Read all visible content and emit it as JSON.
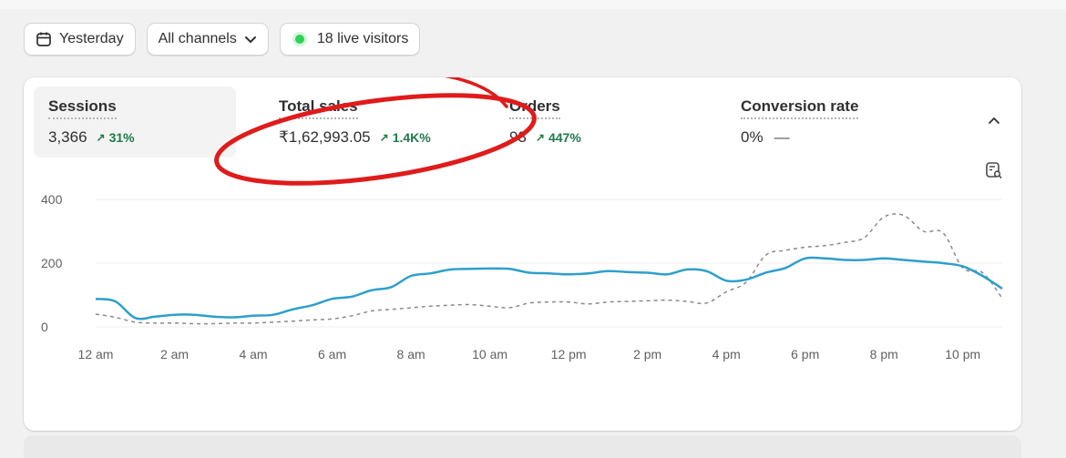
{
  "toolbar": {
    "date_label": "Yesterday",
    "channels_label": "All channels",
    "live_label": "18 live visitors"
  },
  "metrics": [
    {
      "label": "Sessions",
      "value": "3,366",
      "change": "31%"
    },
    {
      "label": "Total sales",
      "value": "₹1,62,993.05",
      "change": "1.4K%"
    },
    {
      "label": "Orders",
      "value": "93",
      "change": "447%"
    },
    {
      "label": "Conversion rate",
      "value": "0%",
      "change": "—"
    }
  ],
  "colors": {
    "primary_series": "#2e9fcb",
    "comparison_series": "#8a8a8a",
    "positive_change": "#1f7a4a",
    "annotation": "#e01b1b",
    "live_dot": "#2ed15a"
  },
  "icons": [
    "calendar-icon",
    "chevron-down-icon",
    "live-dot-icon",
    "chevron-up-icon",
    "chart-search-icon"
  ],
  "chart_data": {
    "type": "line",
    "y_ticks": [
      "0",
      "200",
      "400"
    ],
    "x_ticks": [
      "12 am",
      "2 am",
      "4 am",
      "6 am",
      "8 am",
      "10 am",
      "12 pm",
      "2 pm",
      "4 pm",
      "6 pm",
      "8 pm",
      "10 pm"
    ],
    "ylim": [
      0,
      400
    ],
    "grid": true,
    "series": [
      {
        "style": "solid",
        "x": [
          0,
          0.5,
          1,
          1.5,
          2,
          2.5,
          3,
          3.5,
          4,
          4.5,
          5,
          5.5,
          6,
          6.5,
          7,
          7.5,
          8,
          8.5,
          9,
          9.5,
          10,
          10.5,
          11,
          11.5,
          12,
          12.5,
          13,
          13.5,
          14,
          14.5,
          15,
          15.5,
          16,
          16.5,
          17,
          17.5,
          18,
          18.5,
          19,
          19.5,
          20,
          20.5,
          21,
          21.5,
          22,
          22.5,
          23
        ],
        "values": [
          88,
          80,
          28,
          32,
          38,
          38,
          32,
          30,
          35,
          38,
          55,
          68,
          88,
          95,
          115,
          125,
          160,
          168,
          180,
          182,
          183,
          182,
          170,
          168,
          165,
          168,
          175,
          172,
          170,
          165,
          180,
          175,
          145,
          148,
          170,
          185,
          215,
          215,
          210,
          210,
          215,
          210,
          205,
          200,
          190,
          160,
          120
        ]
      },
      {
        "style": "dashed",
        "x": [
          0,
          0.5,
          1,
          1.5,
          2,
          2.5,
          3,
          3.5,
          4,
          4.5,
          5,
          5.5,
          6,
          6.5,
          7,
          7.5,
          8,
          8.5,
          9,
          9.5,
          10,
          10.5,
          11,
          11.5,
          12,
          12.5,
          13,
          13.5,
          14,
          14.5,
          15,
          15.5,
          16,
          16.5,
          17,
          17.5,
          18,
          18.5,
          19,
          19.5,
          20,
          20.5,
          21,
          21.5,
          22,
          22.5,
          23
        ],
        "values": [
          40,
          30,
          15,
          12,
          12,
          10,
          10,
          12,
          12,
          15,
          18,
          22,
          25,
          35,
          50,
          55,
          60,
          65,
          68,
          70,
          65,
          60,
          75,
          78,
          78,
          72,
          78,
          80,
          82,
          84,
          80,
          75,
          110,
          140,
          225,
          240,
          250,
          255,
          265,
          280,
          345,
          350,
          300,
          295,
          185,
          170,
          90
        ]
      }
    ]
  }
}
